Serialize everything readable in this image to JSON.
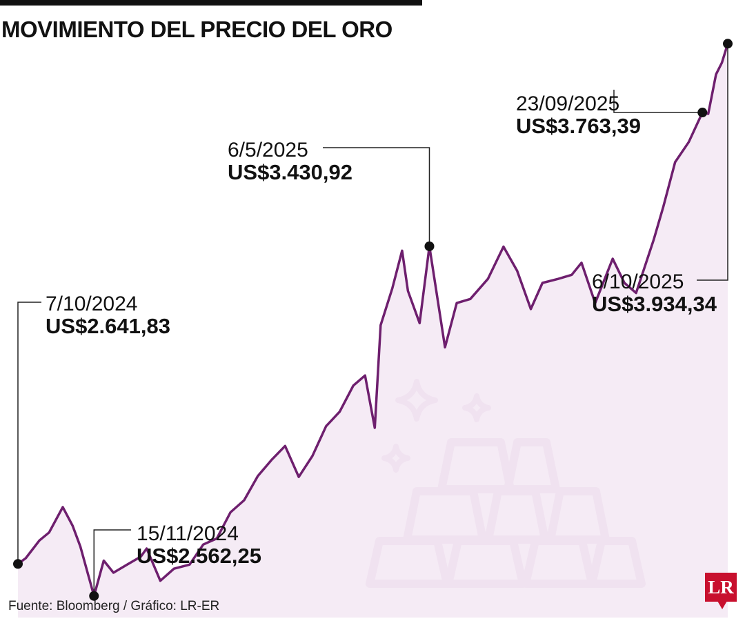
{
  "title": "MOVIMIENTO DEL PRECIO DEL ORO",
  "source": "Fuente: Bloomberg / Gráfico: LR-ER",
  "logo": "LR",
  "colors": {
    "line": "#6e1f6e",
    "area": "#f3e7f3",
    "icons": "#dcc3dc",
    "accent": "#c8102e"
  },
  "icons": [
    "gold-bars-icon",
    "sparkle-icon"
  ],
  "chart_data": {
    "type": "area",
    "title": "MOVIMIENTO DEL PRECIO DEL ORO",
    "xlabel": "",
    "ylabel": "",
    "grid": false,
    "legend": "none",
    "xlim": [
      "2024-10-07",
      "2025-10-06"
    ],
    "ylim": [
      2500,
      4000
    ],
    "series": [
      {
        "name": "",
        "points": [
          [
            "2024-10-07",
            2641.83
          ],
          [
            "2024-10-11",
            2656
          ],
          [
            "2024-10-18",
            2700
          ],
          [
            "2024-10-23",
            2720
          ],
          [
            "2024-10-30",
            2783
          ],
          [
            "2024-11-04",
            2737
          ],
          [
            "2024-11-08",
            2685
          ],
          [
            "2024-11-15",
            2562.25
          ],
          [
            "2024-11-20",
            2650
          ],
          [
            "2024-11-25",
            2620
          ],
          [
            "2024-12-02",
            2640
          ],
          [
            "2024-12-09",
            2660
          ],
          [
            "2024-12-12",
            2680
          ],
          [
            "2024-12-19",
            2600
          ],
          [
            "2024-12-26",
            2630
          ],
          [
            "2025-01-03",
            2640
          ],
          [
            "2025-01-10",
            2690
          ],
          [
            "2025-01-17",
            2705
          ],
          [
            "2025-01-24",
            2770
          ],
          [
            "2025-01-31",
            2800
          ],
          [
            "2025-02-07",
            2860
          ],
          [
            "2025-02-14",
            2900
          ],
          [
            "2025-02-21",
            2935
          ],
          [
            "2025-02-28",
            2858
          ],
          [
            "2025-03-07",
            2910
          ],
          [
            "2025-03-14",
            2984
          ],
          [
            "2025-03-21",
            3020
          ],
          [
            "2025-03-28",
            3085
          ],
          [
            "2025-04-03",
            3110
          ],
          [
            "2025-04-08",
            2980
          ],
          [
            "2025-04-11",
            3235
          ],
          [
            "2025-04-17",
            3327
          ],
          [
            "2025-04-22",
            3420
          ],
          [
            "2025-04-25",
            3320
          ],
          [
            "2025-05-01",
            3240
          ],
          [
            "2025-05-06",
            3430.92
          ],
          [
            "2025-05-14",
            3180
          ],
          [
            "2025-05-20",
            3290
          ],
          [
            "2025-05-27",
            3300
          ],
          [
            "2025-06-05",
            3350
          ],
          [
            "2025-06-13",
            3430
          ],
          [
            "2025-06-20",
            3370
          ],
          [
            "2025-06-27",
            3275
          ],
          [
            "2025-07-03",
            3340
          ],
          [
            "2025-07-11",
            3350
          ],
          [
            "2025-07-18",
            3360
          ],
          [
            "2025-07-23",
            3390
          ],
          [
            "2025-07-30",
            3290
          ],
          [
            "2025-08-08",
            3400
          ],
          [
            "2025-08-14",
            3340
          ],
          [
            "2025-08-20",
            3315
          ],
          [
            "2025-08-29",
            3447
          ],
          [
            "2025-09-03",
            3530
          ],
          [
            "2025-09-09",
            3640
          ],
          [
            "2025-09-16",
            3690
          ],
          [
            "2025-09-23",
            3763.39
          ],
          [
            "2025-09-26",
            3760
          ],
          [
            "2025-09-30",
            3858
          ],
          [
            "2025-10-03",
            3887
          ],
          [
            "2025-10-06",
            3934.34
          ]
        ]
      }
    ],
    "annotations": [
      {
        "date_label": "7/10/2024",
        "value_label": "US$2.641,83",
        "x": "2024-10-07",
        "y": 2641.83
      },
      {
        "date_label": "15/11/2024",
        "value_label": "US$2.562,25",
        "x": "2024-11-15",
        "y": 2562.25
      },
      {
        "date_label": "6/5/2025",
        "value_label": "US$3.430,92",
        "x": "2025-05-06",
        "y": 3430.92
      },
      {
        "date_label": "23/09/2025",
        "value_label": "US$3.763,39",
        "x": "2025-09-23",
        "y": 3763.39
      },
      {
        "date_label": "6/10/2025",
        "value_label": "US$3.934,34",
        "x": "2025-10-06",
        "y": 3934.34
      }
    ]
  }
}
